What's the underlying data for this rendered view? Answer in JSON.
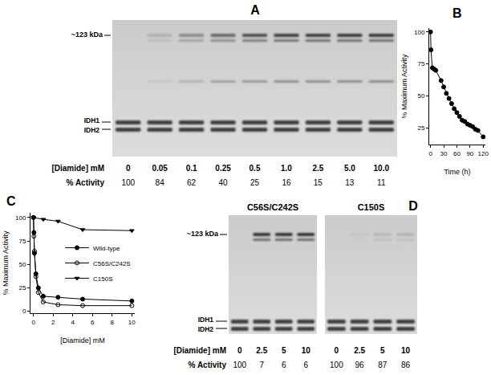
{
  "chart_data": [
    {
      "type": "line",
      "title": "B",
      "x_label": "Time (h)",
      "y_label": "% Maximum Activity",
      "x": [
        0,
        1,
        4,
        8,
        12,
        24,
        30,
        36,
        42,
        48,
        54,
        60,
        66,
        72,
        78,
        84,
        90,
        96,
        102,
        108,
        120
      ],
      "values": [
        100,
        86,
        72,
        71,
        70,
        62,
        57,
        52,
        48,
        44,
        40,
        37,
        34,
        31,
        30,
        28,
        27,
        26,
        24,
        23,
        18
      ],
      "color": "#000000",
      "marker": "circle",
      "line_style": "solid",
      "xlim": [
        -3,
        125
      ],
      "ylim": [
        12,
        103
      ],
      "xticks": [
        0,
        30,
        60,
        90,
        120
      ],
      "yticks": [
        25,
        50,
        75,
        100
      ],
      "grid": false
    },
    {
      "type": "line",
      "title": "C",
      "x_label": "[Diamide] mM",
      "y_label": "% Maximum Activity",
      "series": [
        {
          "name": "Wild-type",
          "x": [
            0,
            0.05,
            0.1,
            0.25,
            0.5,
            1,
            2.5,
            5,
            10
          ],
          "values": [
            100,
            84,
            62,
            40,
            25,
            16,
            15,
            13,
            11
          ],
          "color": "#000000",
          "marker": "circle",
          "line_style": "solid"
        },
        {
          "name": "C56S/C242S",
          "x": [
            0,
            0.05,
            0.1,
            0.25,
            0.5,
            1,
            2.5,
            5,
            10
          ],
          "values": [
            100,
            80,
            64,
            37,
            20,
            10,
            7,
            6,
            6
          ],
          "color": "#000000",
          "marker": "circle-open",
          "line_style": "solid"
        },
        {
          "name": "C150S",
          "x": [
            0,
            1,
            2.5,
            5,
            10
          ],
          "values": [
            100,
            98,
            96,
            87,
            86
          ],
          "color": "#000000",
          "marker": "triangle-down",
          "line_style": "solid"
        }
      ],
      "xlim": [
        -0.3,
        10.3
      ],
      "ylim": [
        -2,
        105
      ],
      "xticks": [
        0,
        2,
        4,
        6,
        8,
        10
      ],
      "yticks": [
        0,
        25,
        50,
        75,
        100
      ],
      "grid": false,
      "legend": "right"
    }
  ],
  "gel_panels": [
    {
      "title": "A",
      "band_labels": [
        "~123 kDa",
        "IDH1",
        "IDH2"
      ],
      "row_labels": [
        "[Diamide] mM",
        "% Activity"
      ],
      "gels": [
        {
          "diamide": [
            0,
            0.05,
            0.1,
            0.25,
            0.5,
            {
              "value": 1,
              "label": "1.0"
            },
            2.5,
            {
              "value": 5,
              "label": "5.0"
            },
            {
              "value": 10,
              "label": "10.0"
            }
          ],
          "activity": [
            100,
            84,
            62,
            40,
            25,
            16,
            15,
            13,
            11
          ]
        }
      ]
    },
    {
      "title": "D",
      "band_labels": [
        "~123 kDa",
        "IDH1",
        "IDH2"
      ],
      "row_labels": [
        "[Diamide] mM",
        "% Activity"
      ],
      "gels": [
        {
          "name": "C56S/C242S",
          "diamide": [
            0,
            2.5,
            5,
            10
          ],
          "activity": [
            100,
            7,
            6,
            6
          ]
        },
        {
          "name": "C150S",
          "diamide": [
            0,
            2.5,
            5,
            10
          ],
          "activity": [
            100,
            96,
            87,
            86
          ]
        }
      ]
    }
  ]
}
